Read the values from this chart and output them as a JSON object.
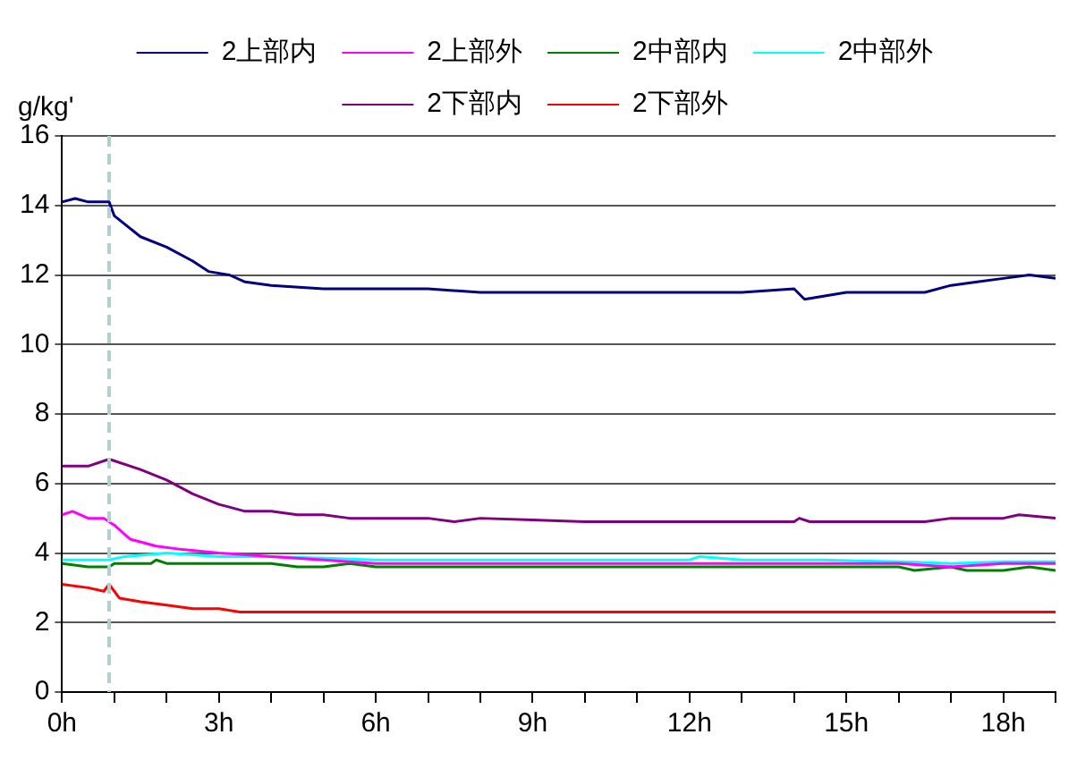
{
  "chart_data": {
    "type": "line",
    "ylabel": "g/kg'",
    "xlim": [
      0,
      19
    ],
    "ylim": [
      0,
      16
    ],
    "xticks": [
      {
        "value": 0,
        "label": "0h"
      },
      {
        "value": 1,
        "label": null
      },
      {
        "value": 2,
        "label": null
      },
      {
        "value": 3,
        "label": "3h"
      },
      {
        "value": 4,
        "label": null
      },
      {
        "value": 5,
        "label": null
      },
      {
        "value": 6,
        "label": "6h"
      },
      {
        "value": 7,
        "label": null
      },
      {
        "value": 8,
        "label": null
      },
      {
        "value": 9,
        "label": "9h"
      },
      {
        "value": 10,
        "label": null
      },
      {
        "value": 11,
        "label": null
      },
      {
        "value": 12,
        "label": "12h"
      },
      {
        "value": 13,
        "label": null
      },
      {
        "value": 14,
        "label": null
      },
      {
        "value": 15,
        "label": "15h"
      },
      {
        "value": 16,
        "label": null
      },
      {
        "value": 17,
        "label": null
      },
      {
        "value": 18,
        "label": "18h"
      },
      {
        "value": 19,
        "label": null
      }
    ],
    "yticks": [
      0,
      2,
      4,
      6,
      8,
      10,
      12,
      14,
      16
    ],
    "grid": "y",
    "legend": "top",
    "marker": "none",
    "line_style": "solid",
    "ref_lines": [
      {
        "axis": "x",
        "value": 0.9,
        "color": "#b0d0d0",
        "line_style": "dashed"
      }
    ],
    "series": [
      {
        "name": "2上部内",
        "color": "#000080",
        "x": [
          0,
          0.25,
          0.5,
          0.9,
          1.0,
          1.5,
          2,
          2.5,
          2.8,
          3.2,
          3.5,
          4,
          5,
          6,
          7,
          8,
          9,
          10,
          11,
          12,
          13,
          14,
          14.2,
          15,
          16,
          16.5,
          17,
          17.5,
          18,
          18.5,
          19
        ],
        "values": [
          14.1,
          14.2,
          14.1,
          14.1,
          13.7,
          13.1,
          12.8,
          12.4,
          12.1,
          12.0,
          11.8,
          11.7,
          11.6,
          11.6,
          11.6,
          11.5,
          11.5,
          11.5,
          11.5,
          11.5,
          11.5,
          11.6,
          11.3,
          11.5,
          11.5,
          11.5,
          11.7,
          11.8,
          11.9,
          12.0,
          11.9
        ]
      },
      {
        "name": "2上部外",
        "color": "#ff00ff",
        "x": [
          0,
          0.2,
          0.5,
          0.8,
          1.0,
          1.3,
          1.8,
          2.3,
          3,
          4,
          5,
          6,
          8,
          10,
          12,
          14,
          16,
          17,
          18,
          19
        ],
        "values": [
          5.1,
          5.2,
          5.0,
          5.0,
          4.8,
          4.4,
          4.2,
          4.1,
          4.0,
          3.9,
          3.8,
          3.7,
          3.7,
          3.7,
          3.7,
          3.7,
          3.7,
          3.6,
          3.7,
          3.7
        ]
      },
      {
        "name": "2中部内",
        "color": "#008000",
        "x": [
          0,
          0.5,
          0.9,
          1,
          1.7,
          1.8,
          2,
          4,
          4.5,
          5,
          5.5,
          6,
          8,
          10,
          12,
          14,
          16,
          16.3,
          17,
          17.3,
          18,
          18.5,
          19
        ],
        "values": [
          3.7,
          3.6,
          3.6,
          3.7,
          3.7,
          3.8,
          3.7,
          3.7,
          3.6,
          3.6,
          3.7,
          3.6,
          3.6,
          3.6,
          3.6,
          3.6,
          3.6,
          3.5,
          3.6,
          3.5,
          3.5,
          3.6,
          3.5
        ]
      },
      {
        "name": "2中部外",
        "color": "#00ffff",
        "x": [
          0,
          0.5,
          0.9,
          1.2,
          2,
          3,
          4,
          5,
          6,
          8,
          10,
          12,
          12.2,
          13,
          14.5,
          16,
          17,
          18,
          19
        ],
        "values": [
          3.8,
          3.8,
          3.8,
          3.9,
          4.0,
          3.9,
          3.9,
          3.85,
          3.8,
          3.8,
          3.8,
          3.8,
          3.9,
          3.8,
          3.8,
          3.75,
          3.7,
          3.75,
          3.75
        ]
      },
      {
        "name": "2下部内",
        "color": "#800080",
        "x": [
          0,
          0.5,
          0.9,
          1.5,
          2,
          2.5,
          3,
          3.5,
          4,
          4.5,
          5,
          5.5,
          7,
          7.5,
          8,
          9,
          10,
          14,
          14.1,
          14.3,
          16.5,
          17,
          18,
          18.3,
          19
        ],
        "values": [
          6.5,
          6.5,
          6.7,
          6.4,
          6.1,
          5.7,
          5.4,
          5.2,
          5.2,
          5.1,
          5.1,
          5.0,
          5.0,
          4.9,
          5.0,
          4.95,
          4.9,
          4.9,
          5.0,
          4.9,
          4.9,
          5.0,
          5.0,
          5.1,
          5.0
        ]
      },
      {
        "name": "2下部外",
        "color": "#ff0000",
        "x": [
          0,
          0.5,
          0.8,
          0.9,
          1.1,
          1.5,
          2,
          2.5,
          3,
          3.4,
          19
        ],
        "values": [
          3.1,
          3.0,
          2.9,
          3.1,
          2.7,
          2.6,
          2.5,
          2.4,
          2.4,
          2.3,
          2.3
        ]
      }
    ]
  }
}
